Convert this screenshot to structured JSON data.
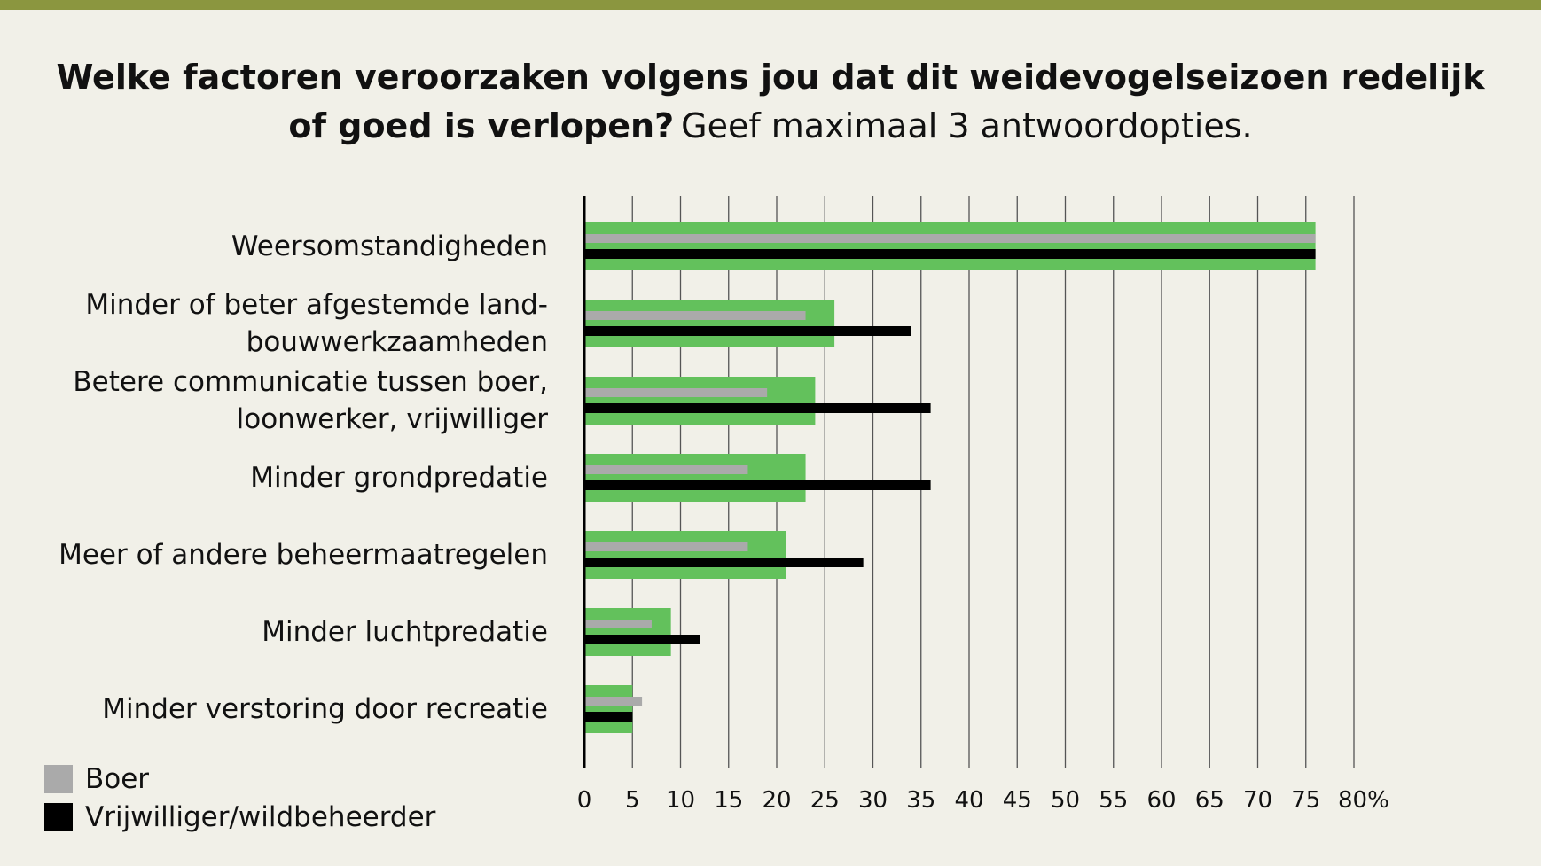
{
  "title": {
    "question": "Welke factoren veroorzaken volgens jou dat dit weidevogelseizoen redelijk of goed is verlopen?",
    "instruction": "Geef maximaal 3 antwoordopties."
  },
  "legend": [
    {
      "label": "Boer",
      "color": "#aaaaaa"
    },
    {
      "label": "Vrijwilliger/wildbeheerder",
      "color": "#000000"
    }
  ],
  "chart_data": {
    "type": "bar",
    "orientation": "horizontal",
    "categories": [
      "Weersomstandigheden",
      "Minder of beter afgestemde land-bouwwerkzaamheden",
      "Betere communicatie tussen boer, loonwerker, vrijwilliger",
      "Minder grondpredatie",
      "Meer of andere beheermaatregelen",
      "Minder luchtpredatie",
      "Minder verstoring door recreatie"
    ],
    "category_lines": [
      [
        "Weersomstandigheden"
      ],
      [
        "Minder of beter afgestemde land-",
        "bouwwerkzaamheden"
      ],
      [
        "Betere communicatie tussen boer,",
        "loonwerker, vrijwilliger"
      ],
      [
        "Minder grondpredatie"
      ],
      [
        "Meer of andere beheermaatregelen"
      ],
      [
        "Minder luchtpredatie"
      ],
      [
        "Minder verstoring door recreatie"
      ]
    ],
    "series": [
      {
        "values": [
          76,
          26,
          24,
          23,
          21,
          9,
          5
        ],
        "color": "#63c15c"
      },
      {
        "name": "Boer",
        "values": [
          76,
          23,
          19,
          17,
          17,
          7,
          6
        ],
        "color": "#aaaaaa"
      },
      {
        "name": "Vrijwilliger/wildbeheerder",
        "values": [
          76,
          34,
          36,
          36,
          29,
          12,
          5
        ],
        "color": "#000000"
      }
    ],
    "xlim": [
      0,
      80
    ],
    "xticks": [
      "0",
      "5",
      "10",
      "15",
      "20",
      "25",
      "30",
      "35",
      "40",
      "45",
      "50",
      "55",
      "60",
      "65",
      "70",
      "75",
      "80%"
    ],
    "grid": true,
    "legend_position": "bottom-left"
  }
}
